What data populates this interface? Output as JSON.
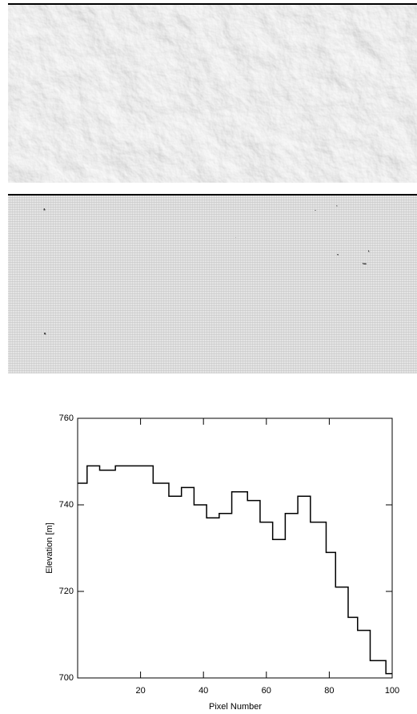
{
  "chart_data": {
    "type": "line",
    "drawstyle": "steps-post",
    "xlabel": "Pixel Number",
    "ylabel": "Elevation [m]",
    "x": [
      0,
      3,
      7,
      12,
      24,
      29,
      33,
      37,
      41,
      45,
      49,
      54,
      58,
      62,
      66,
      70,
      74,
      79,
      82,
      86,
      89,
      93,
      98,
      100
    ],
    "series": [
      {
        "color": "#000000",
        "values": [
          745,
          749,
          748,
          749,
          745,
          742,
          744,
          740,
          737,
          738,
          743,
          741,
          736,
          732,
          738,
          742,
          736,
          729,
          721,
          714,
          711,
          704,
          701,
          701
        ]
      }
    ],
    "xlim": [
      0,
      100
    ],
    "ylim": [
      700,
      760
    ],
    "xticks": [
      20,
      40,
      60,
      80,
      100
    ],
    "yticks": [
      700,
      720,
      740,
      760
    ],
    "grid": false
  }
}
